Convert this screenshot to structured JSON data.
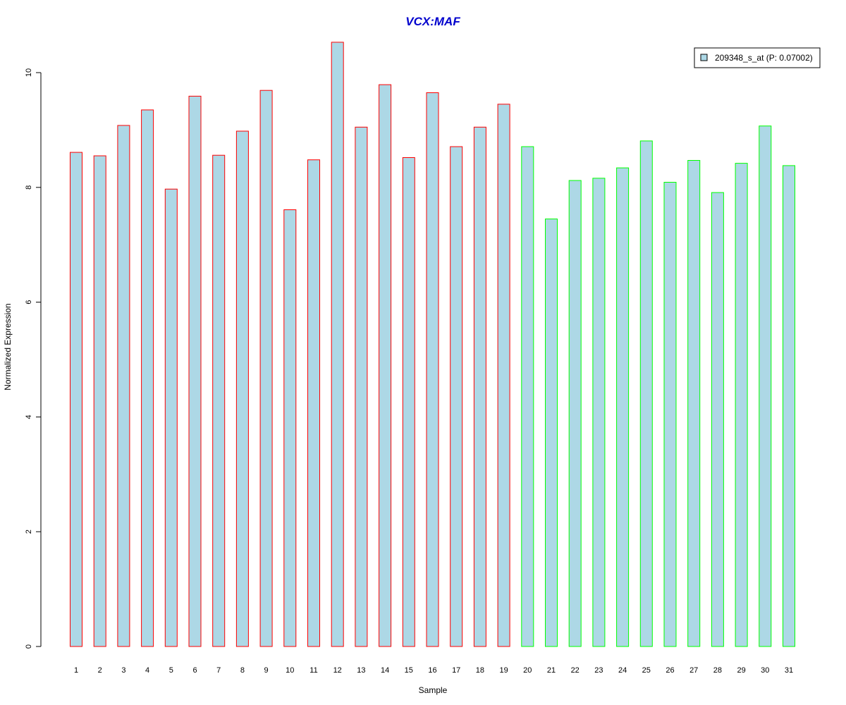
{
  "chart_data": {
    "type": "bar",
    "title": "VCX:MAF",
    "xlabel": "Sample",
    "ylabel": "Normalized Expression",
    "categories": [
      "1",
      "2",
      "3",
      "4",
      "5",
      "6",
      "7",
      "8",
      "9",
      "10",
      "11",
      "12",
      "13",
      "14",
      "15",
      "16",
      "17",
      "18",
      "19",
      "20",
      "21",
      "22",
      "23",
      "24",
      "25",
      "26",
      "27",
      "28",
      "29",
      "30",
      "31"
    ],
    "series": [
      {
        "name": "209348_s_at (P: 0.07002)",
        "values": [
          8.61,
          8.55,
          9.08,
          9.35,
          7.97,
          9.59,
          8.56,
          8.98,
          9.69,
          7.61,
          8.48,
          10.53,
          9.05,
          9.79,
          8.52,
          9.65,
          8.71,
          9.05,
          9.45,
          8.71,
          7.45,
          8.12,
          8.16,
          8.34,
          8.81,
          8.09,
          8.47,
          7.91,
          8.42,
          9.07,
          8.38
        ]
      }
    ],
    "group_edge_colors": [
      "#ff0000",
      "#ff0000",
      "#ff0000",
      "#ff0000",
      "#ff0000",
      "#ff0000",
      "#ff0000",
      "#ff0000",
      "#ff0000",
      "#ff0000",
      "#ff0000",
      "#ff0000",
      "#ff0000",
      "#ff0000",
      "#ff0000",
      "#ff0000",
      "#ff0000",
      "#ff0000",
      "#ff0000",
      "#00ff00",
      "#00ff00",
      "#00ff00",
      "#00ff00",
      "#00ff00",
      "#00ff00",
      "#00ff00",
      "#00ff00",
      "#00ff00",
      "#00ff00",
      "#00ff00",
      "#00ff00"
    ],
    "bar_fill": "#add8e6",
    "title_color": "#0000cd",
    "yticks": [
      0,
      2,
      4,
      6,
      8,
      10
    ],
    "ylim": [
      0,
      10.53
    ],
    "grid": false,
    "legend_position": "top-right"
  }
}
